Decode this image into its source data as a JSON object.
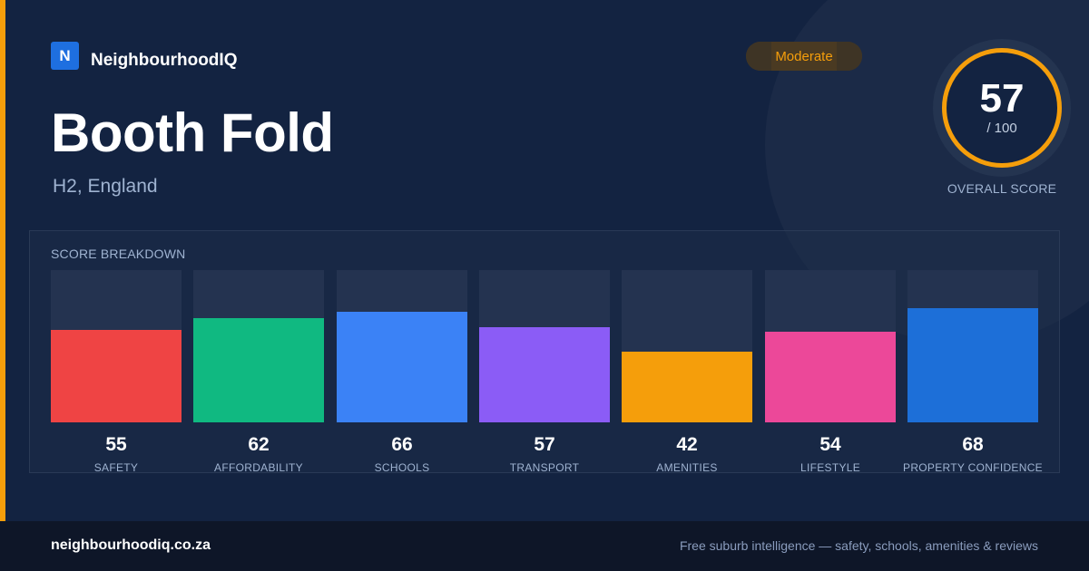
{
  "brand": {
    "logo_letter": "N",
    "name": "NeighbourhoodIQ"
  },
  "location": {
    "name": "Booth Fold",
    "region": "H2, England"
  },
  "rating_badge": "Moderate",
  "overall": {
    "score": "57",
    "max": "/ 100",
    "caption": "OVERALL SCORE"
  },
  "breakdown": {
    "label": "SCORE BREAKDOWN",
    "max_score": 100,
    "items": [
      {
        "label": "SAFETY",
        "score": 55,
        "display": "55",
        "color": "#ef4444"
      },
      {
        "label": "AFFORDABILITY",
        "score": 62,
        "display": "62",
        "color": "#10b981"
      },
      {
        "label": "SCHOOLS",
        "score": 66,
        "display": "66",
        "color": "#3b82f6"
      },
      {
        "label": "TRANSPORT",
        "score": 57,
        "display": "57",
        "color": "#8b5cf6"
      },
      {
        "label": "AMENITIES",
        "score": 42,
        "display": "42",
        "color": "#f59e0b"
      },
      {
        "label": "LIFESTYLE",
        "score": 54,
        "display": "54",
        "color": "#ec4899"
      },
      {
        "label": "PROPERTY CONFIDENCE",
        "score": 68,
        "display": "68",
        "color": "#1d6fd8"
      }
    ]
  },
  "footer": {
    "site": "neighbourhoodiq.co.za",
    "tagline": "Free suburb intelligence — safety, schools, amenities & reviews"
  },
  "colors": {
    "accent": "#f59e0b",
    "background": "#132341",
    "footer": "#0e1628"
  }
}
